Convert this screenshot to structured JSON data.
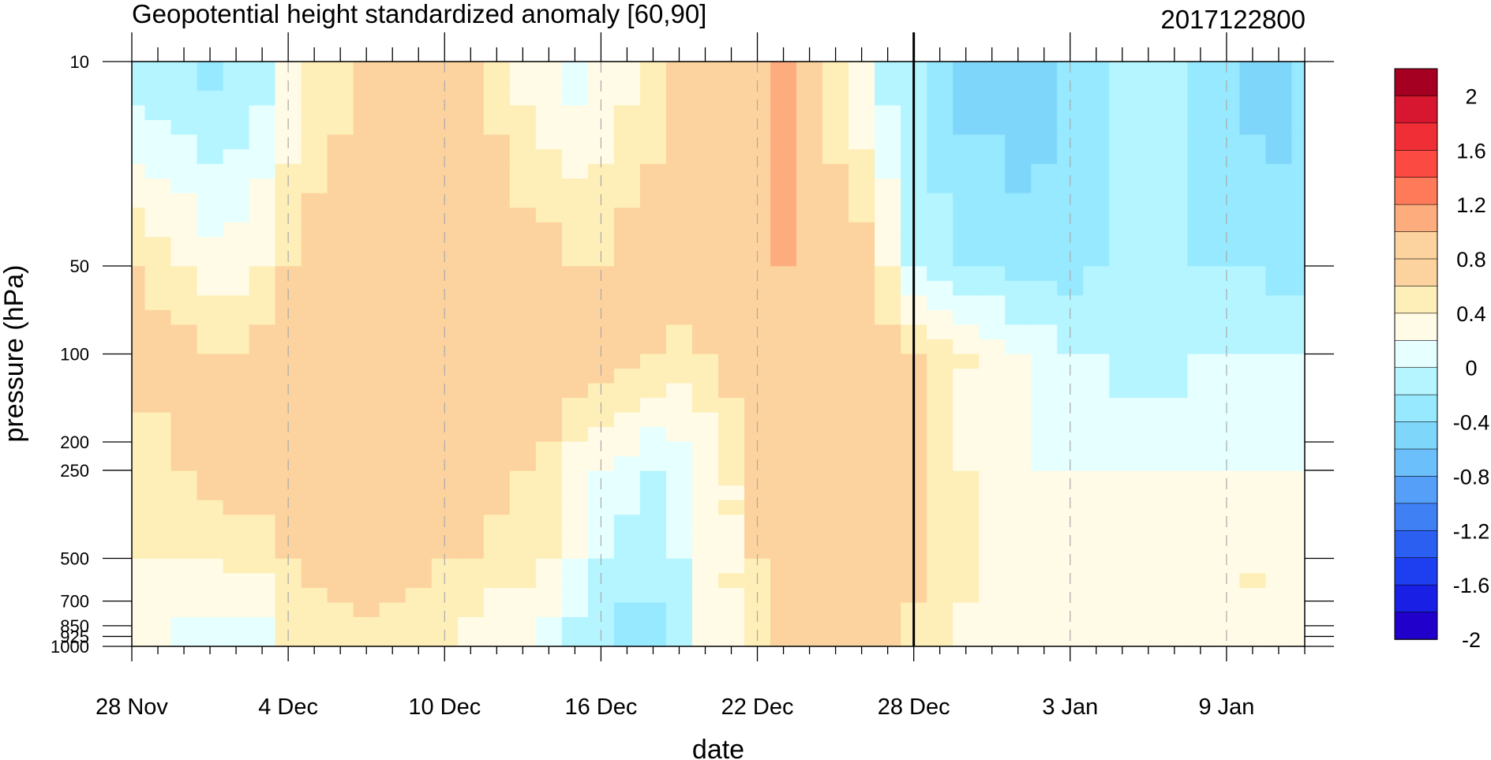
{
  "chart_data": {
    "type": "heatmap",
    "title": "Geopotential height standardized anomaly [60,90]",
    "date_label": "2017122800",
    "xlabel": "date",
    "ylabel": "pressure (hPa)",
    "x_ticks": [
      "28 Nov",
      "4 Dec",
      "10 Dec",
      "16 Dec",
      "22 Dec",
      "28 Dec",
      "3 Jan",
      "9 Jan"
    ],
    "x_tick_days": [
      0,
      6,
      12,
      18,
      24,
      30,
      36,
      42
    ],
    "x_range_days": [
      0,
      45
    ],
    "y_ticks": [
      10,
      50,
      100,
      200,
      250,
      500,
      700,
      850,
      925,
      1000
    ],
    "y_tick_labels": [
      "10",
      "50",
      "100",
      "200",
      "250",
      "500",
      "700",
      "850",
      "925",
      "1000"
    ],
    "y_range_hpa": [
      10,
      1000
    ],
    "marker_day": 30,
    "colorbar": {
      "labels": [
        "2",
        "1.6",
        "1.2",
        "0.8",
        "0.4",
        "0",
        "-0.4",
        "-0.8",
        "-1.2",
        "-1.6",
        "-2"
      ],
      "colors": [
        "#a50021",
        "#d7172f",
        "#ef2f35",
        "#fa4a41",
        "#ff7a59",
        "#fdad7d",
        "#fcd39e",
        "#fcd39e",
        "#feeeb8",
        "#fffbe6",
        "#e6ffff",
        "#b5f5ff",
        "#97e9ff",
        "#7fd6fb",
        "#6bbffa",
        "#559ff8",
        "#4080f5",
        "#2b5ff2",
        "#1e3ff0",
        "#1a1fe6",
        "#2200cc"
      ]
    },
    "series": [
      {
        "level": 10,
        "values": [
          -0.3,
          -0.3,
          -0.3,
          -0.4,
          -0.3,
          -0.2,
          0.1,
          0.3,
          0.4,
          0.6,
          0.7,
          0.8,
          0.9,
          0.7,
          0.4,
          0.2,
          0.1,
          0.0,
          0.1,
          0.2,
          0.4,
          0.5,
          0.6,
          0.7,
          0.8,
          0.9,
          0.7,
          0.3,
          0.1,
          -0.2,
          -0.3,
          -0.5,
          -0.6,
          -0.6,
          -0.7,
          -0.6,
          -0.5,
          -0.4,
          -0.3,
          -0.3,
          -0.3,
          -0.4,
          -0.5,
          -0.6,
          -0.6,
          -0.5
        ]
      },
      {
        "level": 50,
        "values": [
          0.5,
          0.4,
          0.3,
          0.2,
          0.2,
          0.3,
          0.5,
          0.6,
          0.7,
          0.8,
          0.8,
          0.8,
          0.8,
          0.8,
          0.7,
          0.6,
          0.6,
          0.5,
          0.5,
          0.6,
          0.6,
          0.7,
          0.7,
          0.8,
          0.9,
          0.9,
          0.8,
          0.7,
          0.6,
          0.3,
          -0.1,
          -0.2,
          -0.3,
          -0.3,
          -0.4,
          -0.4,
          -0.4,
          -0.3,
          -0.3,
          -0.3,
          -0.3,
          -0.3,
          -0.3,
          -0.3,
          -0.4,
          -0.4
        ]
      },
      {
        "level": 100,
        "values": [
          0.6,
          0.6,
          0.6,
          0.5,
          0.5,
          0.6,
          0.6,
          0.7,
          0.8,
          0.9,
          0.9,
          0.9,
          0.8,
          0.8,
          0.7,
          0.9,
          0.8,
          0.7,
          0.6,
          0.6,
          0.5,
          0.4,
          0.5,
          0.6,
          0.6,
          0.7,
          0.8,
          0.8,
          0.7,
          0.6,
          0.5,
          0.4,
          0.3,
          0.2,
          0.1,
          0.0,
          -0.1,
          -0.1,
          -0.2,
          -0.2,
          -0.2,
          -0.1,
          -0.1,
          -0.1,
          -0.1,
          -0.1
        ]
      },
      {
        "level": 250,
        "values": [
          0.4,
          0.4,
          0.5,
          0.6,
          0.6,
          0.6,
          0.6,
          0.7,
          0.8,
          0.8,
          0.8,
          0.7,
          0.7,
          0.6,
          0.6,
          0.5,
          0.4,
          0.2,
          0.1,
          0.0,
          -0.1,
          0.0,
          0.1,
          0.3,
          0.5,
          0.6,
          0.6,
          0.6,
          0.6,
          0.6,
          0.5,
          0.4,
          0.3,
          0.2,
          0.1,
          0.1,
          0.1,
          0.1,
          0.1,
          0.1,
          0.1,
          0.1,
          0.1,
          0.1,
          0.1,
          0.1
        ]
      },
      {
        "level": 500,
        "values": [
          0.3,
          0.3,
          0.3,
          0.3,
          0.4,
          0.4,
          0.5,
          0.6,
          0.6,
          0.7,
          0.6,
          0.6,
          0.5,
          0.5,
          0.4,
          0.4,
          0.3,
          0.1,
          -0.1,
          -0.2,
          -0.2,
          -0.1,
          0.1,
          0.3,
          0.5,
          0.6,
          0.6,
          0.6,
          0.6,
          0.6,
          0.6,
          0.5,
          0.4,
          0.3,
          0.2,
          0.1,
          0.1,
          0.1,
          0.1,
          0.1,
          0.1,
          0.2,
          0.2,
          0.3,
          0.2,
          0.2
        ]
      },
      {
        "level": 1000,
        "values": [
          0.1,
          0.1,
          0.0,
          0.0,
          -0.1,
          0.0,
          0.3,
          0.3,
          0.4,
          0.4,
          0.4,
          0.3,
          0.3,
          0.2,
          0.1,
          0.1,
          0.0,
          -0.2,
          -0.3,
          -0.4,
          -0.4,
          -0.2,
          0.1,
          0.3,
          0.4,
          0.5,
          0.6,
          0.6,
          0.5,
          0.5,
          0.4,
          0.3,
          0.2,
          0.1,
          0.1,
          0.1,
          0.1,
          0.2,
          0.2,
          0.1,
          0.1,
          0.2,
          0.2,
          0.3,
          0.2,
          0.2
        ]
      }
    ]
  }
}
